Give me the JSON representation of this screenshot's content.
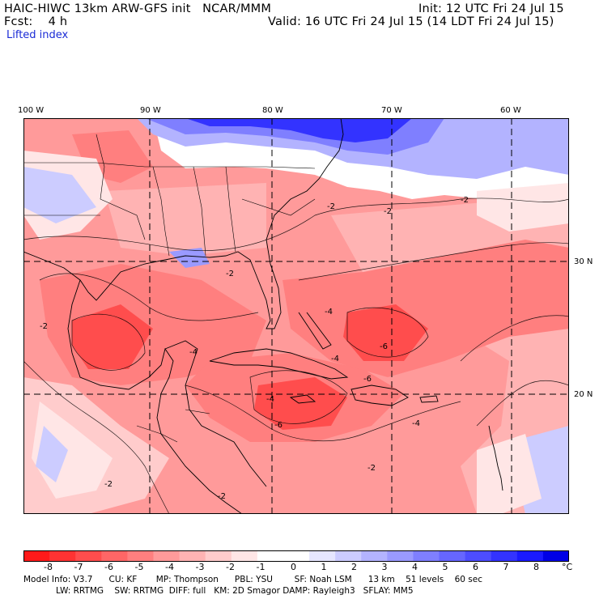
{
  "header": {
    "model_line": "HAIC-HIWC 13km ARW-GFS init   NCAR/MMM",
    "fcst_line": "Fcst:    4 h",
    "init_line": "Init: 12 UTC Fri 24 Jul 15",
    "valid_line": "Valid: 16 UTC Fri 24 Jul 15 (14 LDT Fri 24 Jul 15)",
    "field_name": "Lifted index"
  },
  "axes": {
    "lon_labels": [
      "100 W",
      "90 W",
      "80 W",
      "70 W",
      "60 W"
    ],
    "lat_labels": [
      "30 N",
      "20 N"
    ]
  },
  "colorbar": {
    "colors": [
      "#ff1a1a",
      "#ff3333",
      "#ff4d4d",
      "#ff6666",
      "#ff7f7f",
      "#ff9a9a",
      "#ffb3b3",
      "#ffcccc",
      "#ffe6e6",
      "#ffffff",
      "#ffffff",
      "#e6e6ff",
      "#ccccff",
      "#b3b3ff",
      "#9a9aff",
      "#7f7fff",
      "#6666ff",
      "#4d4dff",
      "#3333ff",
      "#1a1aff",
      "#0000e6"
    ],
    "tick_labels": [
      "-8",
      "-7",
      "-6",
      "-5",
      "-4",
      "-3",
      "-2",
      "-1",
      "0",
      "1",
      "2",
      "3",
      "4",
      "5",
      "6",
      "7",
      "8"
    ],
    "unit": "°C"
  },
  "model_info": {
    "line1": "Model Info: V3.7      CU: KF       MP: Thompson      PBL: YSU        SF: Noah LSM      13 km    51 levels    60 sec",
    "line2": "            LW: RRTMG    SW: RRTMG  DIFF: full   KM: 2D Smagor DAMP: Rayleigh3   SFLAY: MM5"
  },
  "map": {
    "contour_labels": [
      "-2",
      "-2",
      "-2",
      "-2",
      "-2",
      "-4",
      "-4",
      "-4",
      "-4",
      "-4",
      "-6",
      "-6",
      "-6",
      "-2",
      "-2",
      "-2"
    ]
  }
}
